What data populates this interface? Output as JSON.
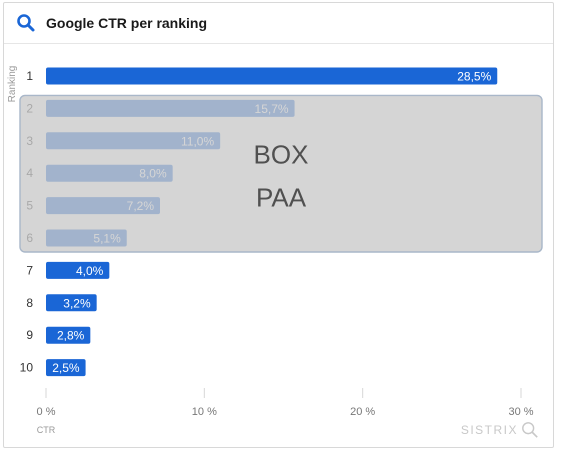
{
  "header": {
    "title": "Google CTR per ranking",
    "icon": "search-icon"
  },
  "colors": {
    "bar": "#1a66d6",
    "accent": "#1a66d6",
    "grid": "#d7d7d7",
    "overlay": "#c9c9c9"
  },
  "overlay": {
    "lines": [
      "BOX",
      "PAA"
    ],
    "covers_categories": [
      "2",
      "3",
      "4",
      "5",
      "6"
    ]
  },
  "watermark": {
    "text": "SISTRIX",
    "icon": "search-icon"
  },
  "chart_data": {
    "type": "bar",
    "orientation": "horizontal",
    "title": "Google CTR per ranking",
    "ylabel": "Ranking",
    "xlabel": "CTR",
    "categories": [
      "1",
      "2",
      "3",
      "4",
      "5",
      "6",
      "7",
      "8",
      "9",
      "10"
    ],
    "values": [
      28.5,
      15.7,
      11.0,
      8.0,
      7.2,
      5.1,
      4.0,
      3.2,
      2.8,
      2.5
    ],
    "value_labels": [
      "28,5%",
      "15,7%",
      "11,0%",
      "8,0%",
      "7,2%",
      "5,1%",
      "4,0%",
      "3,2%",
      "2,8%",
      "2,5%"
    ],
    "xlim": [
      0,
      30
    ],
    "xticks": [
      0,
      10,
      20,
      30
    ],
    "xtick_labels": [
      "0 %",
      "10 %",
      "20 %",
      "30 %"
    ],
    "grid": "vertical"
  }
}
